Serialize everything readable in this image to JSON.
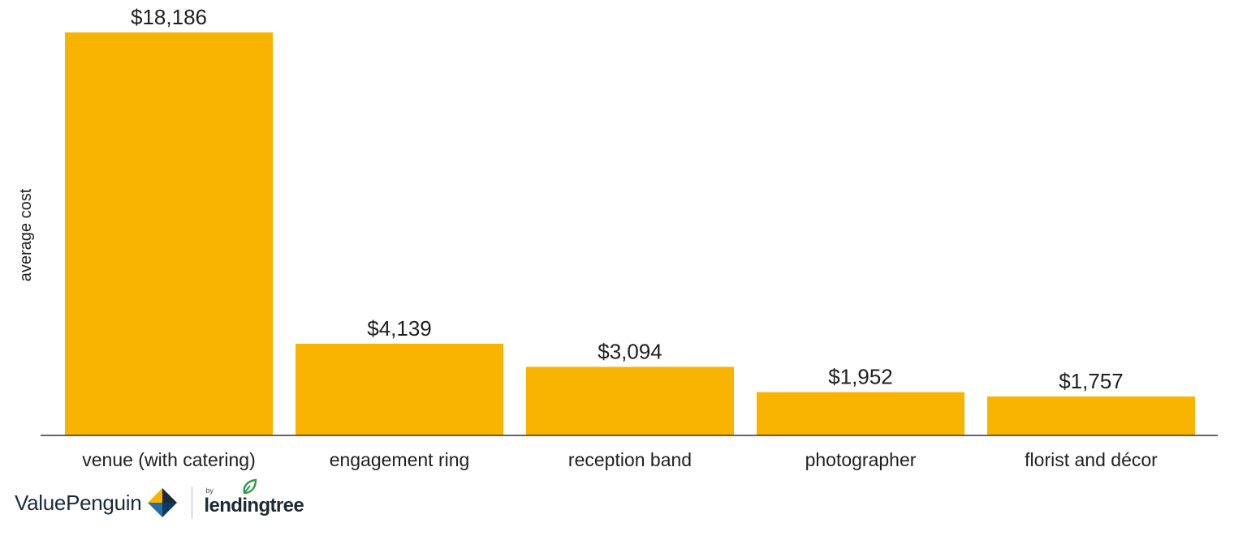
{
  "chart_data": {
    "type": "bar",
    "title": "",
    "xlabel": "",
    "ylabel": "average cost",
    "categories": [
      "venue (with catering)",
      "engagement ring",
      "reception band",
      "photographer",
      "florist and décor"
    ],
    "values": [
      18186,
      4139,
      3094,
      1952,
      1757
    ],
    "value_labels": [
      "$18,186",
      "$4,139",
      "$3,094",
      "$1,952",
      "$1,757"
    ],
    "ylim": [
      0,
      18186
    ],
    "grid": false,
    "legend": "none",
    "bar_color": "#F8B400",
    "axis_color": "#333333"
  },
  "footer": {
    "brand": "ValuePenguin",
    "by": "by",
    "partner": "lendingtree",
    "brand_icon": "valuepenguin-logo-icon",
    "partner_icon": "lendingtree-leaf-icon"
  }
}
